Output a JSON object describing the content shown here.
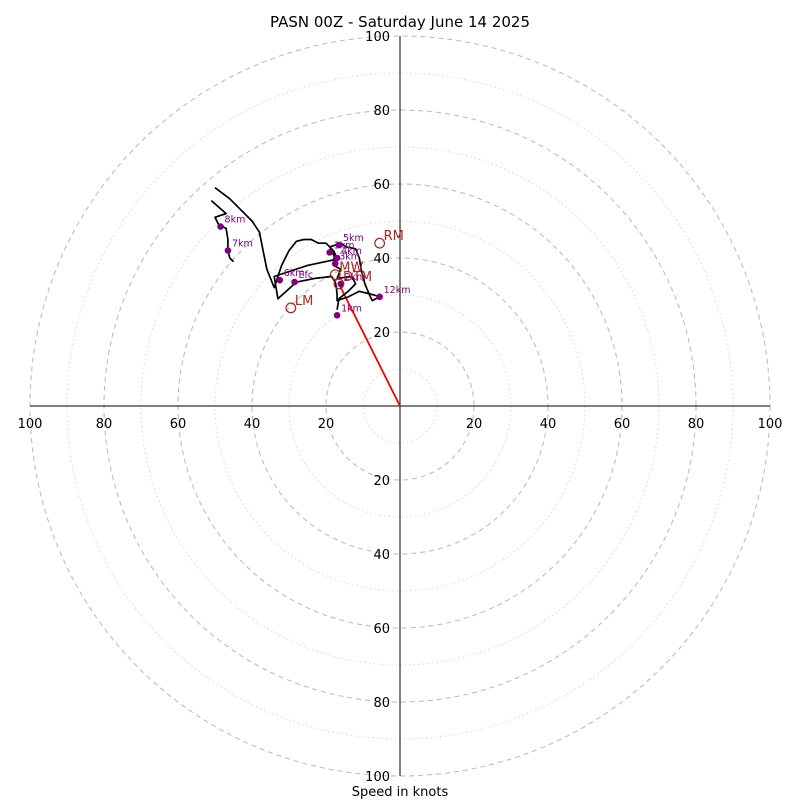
{
  "chart_data": {
    "type": "hodograph",
    "title": "PASN 00Z - Saturday June 14 2025",
    "xlabel": "Speed in knots",
    "speed_range": [
      0,
      100
    ],
    "major_rings": [
      20,
      40,
      60,
      80,
      100
    ],
    "minor_rings": [
      10,
      30,
      50,
      70,
      90
    ],
    "tick_labels": {
      "left": [
        "100",
        "80",
        "60",
        "40",
        "20"
      ],
      "right": [
        "20",
        "40",
        "60",
        "80",
        "100"
      ],
      "up": [
        "20",
        "40",
        "60",
        "80",
        "100"
      ],
      "down": [
        "20",
        "40",
        "60",
        "80",
        "100"
      ]
    },
    "grid": true,
    "hodograph_trace": [
      [
        -17,
        26
      ],
      [
        -16.5,
        29
      ],
      [
        -14,
        31
      ],
      [
        -12,
        33
      ],
      [
        -13,
        35
      ],
      [
        -17,
        34.5
      ],
      [
        -16,
        37
      ],
      [
        -18,
        38
      ],
      [
        -17.5,
        39.5
      ],
      [
        -18,
        41
      ],
      [
        -19,
        43
      ],
      [
        -16,
        44
      ],
      [
        -14.5,
        43
      ],
      [
        -12,
        42.5
      ],
      [
        -11,
        40
      ],
      [
        -10.5,
        37
      ],
      [
        -9.5,
        33
      ],
      [
        -8,
        29.5
      ],
      [
        -7.5,
        28.5
      ],
      [
        -5.5,
        29.5
      ],
      [
        -7,
        30
      ],
      [
        -11,
        31
      ],
      [
        -14,
        29.5
      ],
      [
        -17,
        28.5
      ],
      [
        -17,
        30
      ],
      [
        -17.2,
        32
      ],
      [
        -17.5,
        33.5
      ],
      [
        -18.5,
        35
      ],
      [
        -23,
        34.5
      ],
      [
        -28,
        33.5
      ],
      [
        -33,
        29
      ],
      [
        -34,
        35
      ],
      [
        -25,
        38
      ],
      [
        -18,
        39.5
      ],
      [
        -17.5,
        41
      ],
      [
        -18,
        42
      ],
      [
        -20,
        44
      ],
      [
        -22,
        44
      ],
      [
        -24,
        45
      ],
      [
        -26,
        45
      ],
      [
        -28,
        44.5
      ],
      [
        -30,
        42
      ],
      [
        -32,
        38
      ],
      [
        -34,
        32
      ],
      [
        -36,
        37
      ],
      [
        -38,
        47
      ],
      [
        -40,
        50
      ],
      [
        -46,
        56
      ],
      [
        -50,
        59
      ]
    ],
    "trace_color": "#000000",
    "bunkers_trace_tail": [
      [
        -51,
        55.5
      ],
      [
        -47,
        52
      ],
      [
        -50,
        51
      ],
      [
        -49,
        49
      ],
      [
        -47,
        48
      ],
      [
        -46.5,
        45
      ],
      [
        -46.5,
        42
      ],
      [
        -46,
        40
      ],
      [
        -45,
        39
      ]
    ],
    "height_points": [
      {
        "label": "1km",
        "u": -17,
        "v": 24.5
      },
      {
        "label": "2km",
        "u": -16,
        "v": 33
      },
      {
        "label": "3km",
        "u": -17.5,
        "v": 38.5
      },
      {
        "label": "4km",
        "u": -17,
        "v": 40
      },
      {
        "label": "5km",
        "u": -16.5,
        "v": 43.5
      },
      {
        "label": "6km",
        "u": -32.5,
        "v": 34
      },
      {
        "label": "7km",
        "u": -46.5,
        "v": 42
      },
      {
        "label": "8km",
        "u": -48.5,
        "v": 48.5
      },
      {
        "label": "12km",
        "u": -5.5,
        "v": 29.5
      },
      {
        "label": "3km",
        "u": -19,
        "v": 41.5
      },
      {
        "label": "Efc",
        "u": -28.5,
        "v": 33.5
      }
    ],
    "height_point_color": "#800080",
    "storm_motions": [
      {
        "label": "RM",
        "u": -5.5,
        "v": 44
      },
      {
        "label": "LM",
        "u": -29.5,
        "v": 26.5
      },
      {
        "label": "MW",
        "u": -17.5,
        "v": 35.5
      },
      {
        "label": "DTM",
        "u": -16.5,
        "v": 33
      }
    ],
    "storm_motion_color": "#b22222",
    "storm_vector": {
      "from": [
        0,
        0
      ],
      "to": [
        -16.5,
        33
      ],
      "color": "#ff0000"
    }
  }
}
